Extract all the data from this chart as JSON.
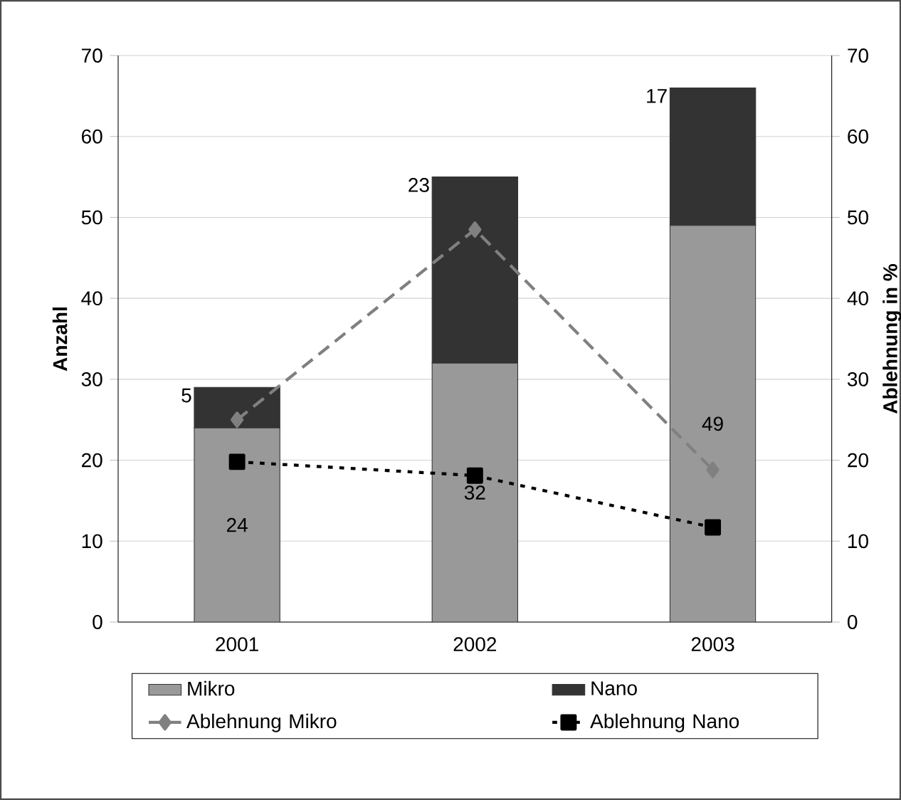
{
  "chart_data": {
    "type": "bar",
    "stacked": true,
    "categories": [
      "2001",
      "2002",
      "2003"
    ],
    "ylabel": "Anzahl",
    "y2label": "Ablehnung in %",
    "ylim": [
      0,
      70
    ],
    "yticks": [
      0,
      10,
      20,
      30,
      40,
      50,
      60,
      70
    ],
    "y2lim": [
      0,
      70
    ],
    "y2ticks": [
      0,
      10,
      20,
      30,
      40,
      50,
      60,
      70
    ],
    "grid": "y",
    "legend": "bottom",
    "series": [
      {
        "name": "Mikro",
        "color": "#999999",
        "values": [
          24,
          32,
          49
        ],
        "value_labels": [
          "24",
          "32",
          "49"
        ]
      },
      {
        "name": "Nano",
        "color": "#333333",
        "values": [
          5,
          23,
          17
        ],
        "value_labels": [
          "5",
          "23",
          "17"
        ]
      },
      {
        "name": "Ablehnung Mikro",
        "type": "line",
        "axis": "y2",
        "color": "#808080",
        "marker": "diamond",
        "line_style": "dashed",
        "values": [
          25,
          48.5,
          18.8
        ]
      },
      {
        "name": "Ablehnung Nano",
        "type": "line",
        "axis": "y2",
        "color": "#000000",
        "marker": "square",
        "line_style": "dotted",
        "values": [
          19.8,
          18.1,
          11.7
        ]
      }
    ]
  }
}
